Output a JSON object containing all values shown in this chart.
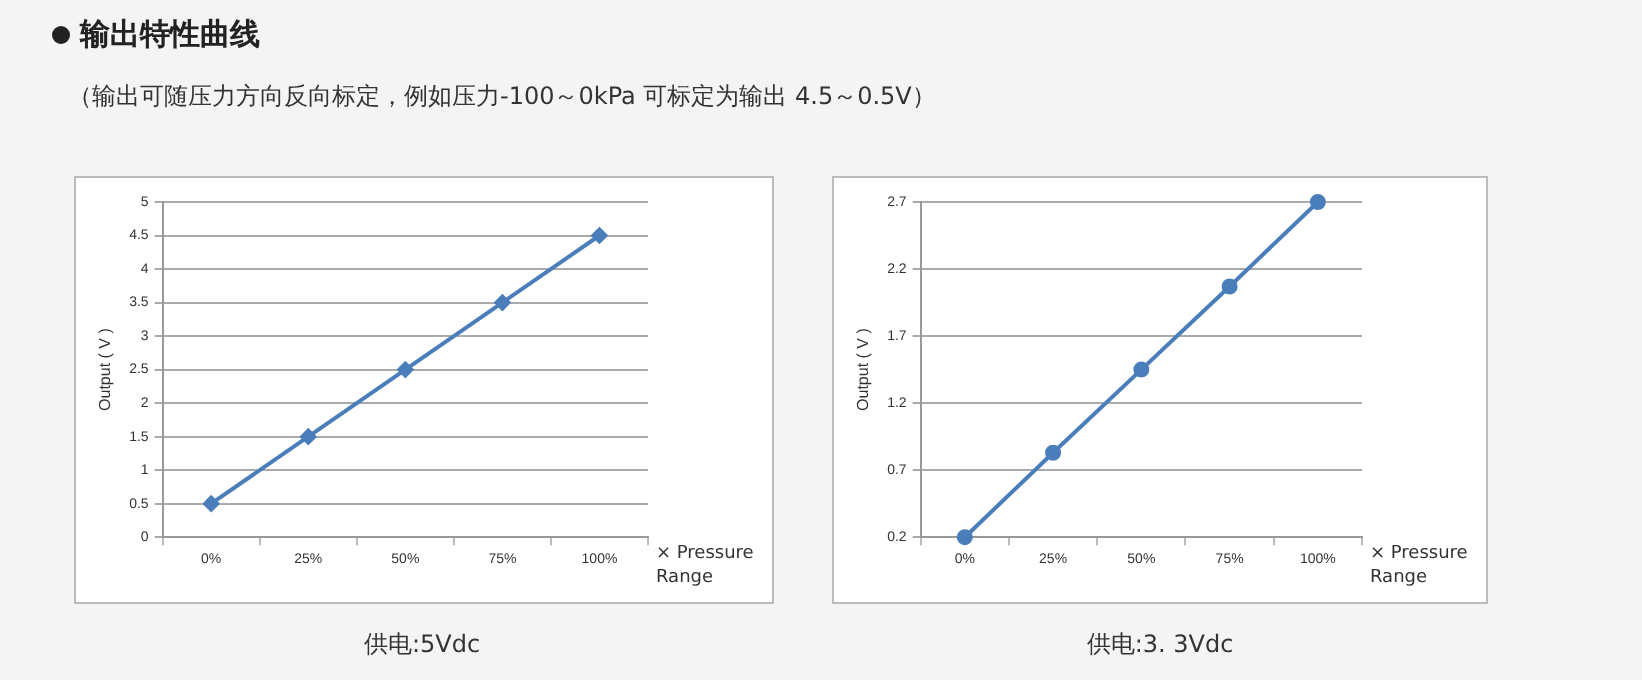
{
  "chart_data": [
    {
      "type": "line",
      "title": "输出特性曲线",
      "subtitle": "（输出可随压力方向反向标定，例如压力-100～0kPa 可标定为输出 4.5～0.5V）",
      "xlabel": "× Pressure Range",
      "ylabel": "Output ( V )",
      "categories": [
        "0%",
        "25%",
        "50%",
        "75%",
        "100%"
      ],
      "series": [
        {
          "color": "#4a7ebb",
          "values": [
            0.5,
            1.5,
            2.5,
            3.5,
            4.5
          ]
        }
      ],
      "ylim": [
        0,
        5
      ],
      "yticks": [
        0,
        0.5,
        1,
        1.5,
        2,
        2.5,
        3,
        3.5,
        4,
        4.5,
        5
      ],
      "grid": "y",
      "marker": "diamond",
      "annotations": [
        "供电:5Vdc"
      ]
    },
    {
      "type": "line",
      "xlabel": "× Pressure Range",
      "ylabel": "Output ( V )",
      "categories": [
        "0%",
        "25%",
        "50%",
        "75%",
        "100%"
      ],
      "series": [
        {
          "color": "#4a7ebb",
          "values": [
            0.2,
            0.83,
            1.45,
            2.07,
            2.7
          ]
        }
      ],
      "ylim": [
        0.2,
        2.7
      ],
      "yticks": [
        0.2,
        0.7,
        1.2,
        1.7,
        2.2,
        2.7
      ],
      "grid": "y",
      "marker": "circle",
      "annotations": [
        "供电:3. 3Vdc"
      ]
    }
  ]
}
